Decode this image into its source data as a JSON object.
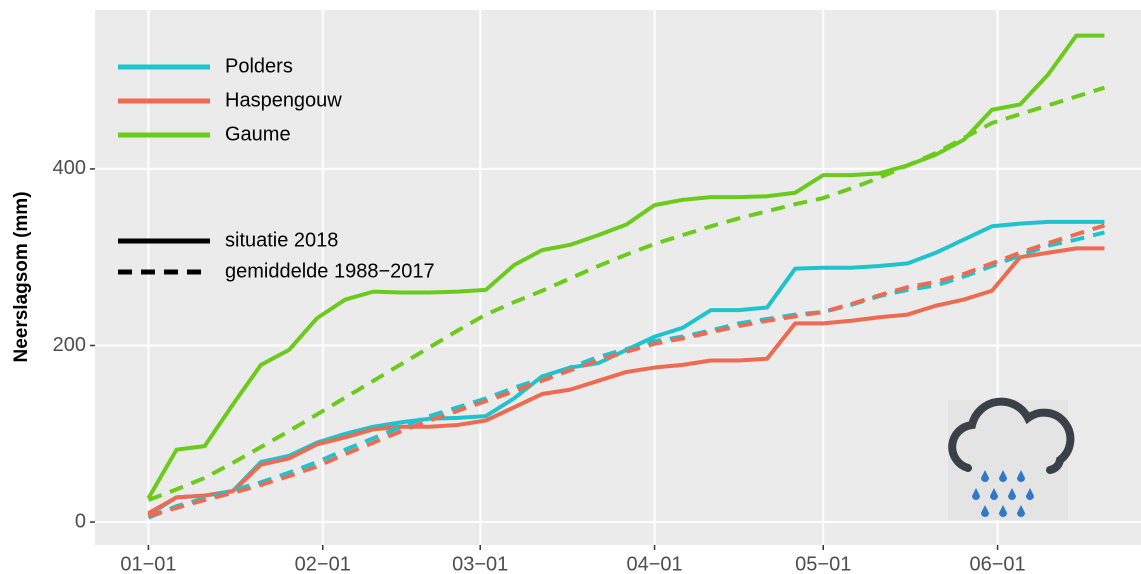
{
  "chart_data": {
    "type": "line",
    "y_label": "Neerslagsom (mm)",
    "x": [
      0,
      5,
      10,
      15,
      20,
      25,
      30,
      35,
      40,
      45,
      50,
      55,
      60,
      65,
      70,
      75,
      80,
      85,
      90,
      95,
      100,
      105,
      110,
      115,
      120,
      125,
      130,
      135,
      140,
      145,
      150,
      155,
      160,
      165,
      170
    ],
    "xlim": [
      -9.5,
      176.5
    ],
    "xticks": [
      {
        "value": 0,
        "label": "01−01"
      },
      {
        "value": 31,
        "label": "02−01"
      },
      {
        "value": 59,
        "label": "03−01"
      },
      {
        "value": 90,
        "label": "04−01"
      },
      {
        "value": 120,
        "label": "05−01"
      },
      {
        "value": 151,
        "label": "06−01"
      }
    ],
    "ylim": [
      -26,
      580
    ],
    "yticks": [
      0,
      200,
      400
    ],
    "grid": true,
    "series": [
      {
        "name": "Polders",
        "color": "#1fc3cd",
        "values": [
          8,
          28,
          30,
          35,
          68,
          75,
          90,
          100,
          108,
          113,
          117,
          118,
          120,
          140,
          165,
          175,
          180,
          195,
          210,
          220,
          240,
          240,
          243,
          287,
          288,
          288,
          290,
          293,
          305,
          320,
          335,
          338,
          340,
          340,
          340
        ],
        "average": [
          5,
          18,
          27,
          36,
          45,
          56,
          68,
          82,
          95,
          108,
          120,
          130,
          140,
          152,
          163,
          175,
          187,
          196,
          205,
          210,
          217,
          225,
          230,
          235,
          238,
          246,
          256,
          263,
          268,
          278,
          290,
          302,
          313,
          320,
          328
        ]
      },
      {
        "name": "Haspengouw",
        "color": "#ee6a50",
        "values": [
          10,
          28,
          30,
          35,
          65,
          72,
          88,
          96,
          105,
          108,
          108,
          110,
          115,
          130,
          145,
          150,
          160,
          170,
          175,
          178,
          183,
          183,
          185,
          225,
          225,
          228,
          232,
          235,
          245,
          252,
          262,
          300,
          305,
          310,
          310
        ],
        "average": [
          7,
          16,
          25,
          33,
          42,
          52,
          63,
          77,
          90,
          103,
          115,
          126,
          137,
          148,
          160,
          172,
          183,
          193,
          202,
          208,
          215,
          222,
          228,
          233,
          238,
          247,
          257,
          266,
          272,
          281,
          293,
          305,
          316,
          326,
          336
        ]
      },
      {
        "name": "Gaume",
        "color": "#6acb1a",
        "values": [
          27,
          82,
          86,
          133,
          178,
          195,
          231,
          252,
          261,
          260,
          260,
          261,
          263,
          291,
          308,
          314,
          325,
          337,
          359,
          365,
          368,
          368,
          369,
          373,
          393,
          393,
          395,
          404,
          416,
          433,
          467,
          473,
          507,
          551,
          551
        ],
        "average": [
          25,
          37,
          50,
          67,
          85,
          103,
          122,
          141,
          160,
          179,
          198,
          217,
          235,
          249,
          262,
          276,
          290,
          303,
          315,
          325,
          335,
          344,
          352,
          360,
          367,
          378,
          390,
          404,
          418,
          435,
          452,
          462,
          472,
          482,
          492
        ]
      }
    ],
    "line_legend": [
      {
        "name": "situatie 2018",
        "key": "values",
        "dash": "solid"
      },
      {
        "name": "gemiddelde 1988−2017",
        "key": "average",
        "dash": "dashed"
      }
    ]
  }
}
